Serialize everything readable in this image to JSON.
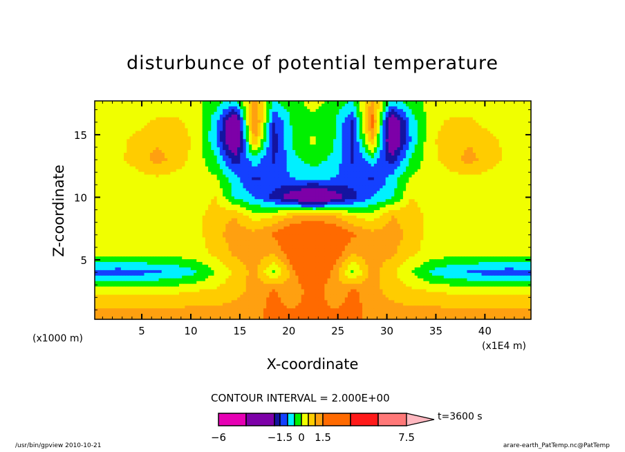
{
  "chart_data": {
    "type": "heatmap",
    "subtype": "filled-contour",
    "title": "disturbunce of potential temperature",
    "xlabel": "X-coordinate",
    "ylabel": "Z-coordinate",
    "x_unit": "(x1000 m)",
    "x_unit_secondary": "(x1E4 m)",
    "xlim": [
      0.2,
      44.7
    ],
    "ylim": [
      0.25,
      17.7
    ],
    "xticks": [
      5,
      10,
      15,
      20,
      25,
      30,
      35,
      40
    ],
    "yticks": [
      5,
      10,
      15
    ],
    "contour_interval_text": "CONTOUR INTERVAL = 2.000E+00",
    "time_label": "t=3600 s",
    "levels": [
      -6,
      -4,
      -2,
      -1.5,
      -1,
      -0.5,
      0,
      0.5,
      1,
      1.5,
      3.5,
      5.5,
      7.5
    ],
    "level_colors": [
      "#e600b4",
      "#7d00a8",
      "#1414a0",
      "#1440ff",
      "#00f0ff",
      "#00f000",
      "#f0ff00",
      "#ffcc00",
      "#ffa010",
      "#ff6a00",
      "#ff1a1a",
      "#ff7878",
      "#ffb8c0"
    ],
    "colorbar_labels": [
      {
        "value": -6,
        "text": "−6"
      },
      {
        "value": -1.5,
        "text": "−1.5"
      },
      {
        "value": 0,
        "text": "0"
      },
      {
        "value": 1.5,
        "text": "1.5"
      },
      {
        "value": 7.5,
        "text": "7.5"
      }
    ],
    "grid_x": [
      0.5,
      2.5,
      4.5,
      6.5,
      8.5,
      10.5,
      12.5,
      14.5,
      16.5,
      18.5,
      20.5,
      22.5,
      24.5,
      26.5,
      28.5,
      30.5,
      32.5,
      34.5,
      36.5,
      38.5,
      40.5,
      42.5,
      44.5
    ],
    "grid_z": [
      17.5,
      16,
      14.5,
      13,
      11.5,
      10,
      8.5,
      7,
      5.5,
      4,
      2.5,
      1
    ],
    "values": [
      [
        0.2,
        0.2,
        0.2,
        0.2,
        0.2,
        0.2,
        -0.3,
        -0.8,
        1.2,
        -0.6,
        -0.2,
        0.2,
        -0.2,
        -0.6,
        1.2,
        -0.8,
        -0.3,
        0.2,
        0.2,
        0.2,
        0.2,
        0.2,
        0.2
      ],
      [
        0.2,
        0.2,
        0.3,
        0.6,
        0.6,
        0.3,
        -0.8,
        -3,
        1.8,
        -1.6,
        -0.3,
        -0.2,
        -0.3,
        -1.6,
        1.8,
        -3,
        -0.8,
        0.3,
        0.6,
        0.6,
        0.3,
        0.2,
        0.2
      ],
      [
        0.2,
        0.3,
        0.7,
        0.9,
        0.8,
        0.4,
        -0.9,
        -3,
        1.0,
        -1.7,
        -0.4,
        0.1,
        -0.4,
        -1.7,
        1.0,
        -3,
        -0.9,
        0.4,
        0.8,
        0.9,
        0.7,
        0.3,
        0.2
      ],
      [
        0.2,
        0.4,
        0.7,
        1.2,
        0.8,
        0.3,
        -0.4,
        -1.8,
        -0.7,
        -1.6,
        -0.6,
        -0.3,
        -0.6,
        -1.6,
        -0.7,
        -1.8,
        -0.4,
        0.3,
        0.8,
        1.2,
        0.7,
        0.4,
        0.2
      ],
      [
        0.2,
        0.2,
        0.3,
        0.4,
        0.3,
        0.2,
        0.1,
        -0.8,
        -1.6,
        -1.2,
        -1.0,
        -0.8,
        -1.0,
        -1.2,
        -1.6,
        -0.8,
        0.1,
        0.2,
        0.3,
        0.4,
        0.3,
        0.2,
        0.2
      ],
      [
        0.2,
        0.2,
        0.2,
        0.2,
        0.2,
        0.2,
        0.5,
        -0.6,
        -1.0,
        -1.7,
        -2.5,
        -3.2,
        -2.5,
        -1.7,
        -1.0,
        -0.6,
        0.5,
        0.2,
        0.2,
        0.2,
        0.2,
        0.2,
        0.2
      ],
      [
        0.2,
        0.2,
        0.2,
        0.2,
        0.2,
        0.3,
        0.8,
        1.0,
        0.2,
        0.5,
        1.0,
        1.2,
        1.0,
        0.5,
        0.2,
        1.0,
        0.8,
        0.3,
        0.2,
        0.2,
        0.2,
        0.2,
        0.2
      ],
      [
        0.2,
        0.2,
        0.2,
        0.2,
        0.2,
        0.3,
        0.8,
        1.3,
        1.2,
        1.6,
        2.2,
        2.5,
        2.2,
        1.6,
        1.2,
        1.3,
        0.8,
        0.3,
        0.2,
        0.2,
        0.2,
        0.2,
        0.2
      ],
      [
        0.2,
        0.2,
        0.2,
        0.2,
        0.2,
        0.3,
        0.6,
        1.1,
        1.3,
        1.0,
        2.0,
        2.8,
        2.0,
        1.0,
        1.3,
        1.1,
        0.6,
        0.3,
        0.2,
        0.2,
        0.2,
        0.2,
        0.2
      ],
      [
        -1.2,
        -1.3,
        -1.2,
        -1.1,
        -0.9,
        -0.6,
        0.0,
        0.6,
        1.2,
        -0.2,
        1.4,
        2.5,
        1.4,
        -0.2,
        1.2,
        0.6,
        0.0,
        -0.6,
        -0.9,
        -1.1,
        -1.2,
        -1.3,
        -1.2
      ],
      [
        0.4,
        0.4,
        0.4,
        0.4,
        0.4,
        0.5,
        0.6,
        0.8,
        1.2,
        1.6,
        1.0,
        2.0,
        1.0,
        1.6,
        1.2,
        0.8,
        0.6,
        0.5,
        0.4,
        0.4,
        0.4,
        0.4,
        0.4
      ],
      [
        1.1,
        1.1,
        1.1,
        1.1,
        1.1,
        1.1,
        1.1,
        1.2,
        1.3,
        1.7,
        1.5,
        2.0,
        1.5,
        1.7,
        1.3,
        1.2,
        1.1,
        1.1,
        1.1,
        1.1,
        1.1,
        1.1,
        1.1
      ]
    ]
  },
  "footer": {
    "left": "/usr/bin/gpview  2010-10-21",
    "right": "arare-earth_PatTemp.nc@PatTemp"
  }
}
